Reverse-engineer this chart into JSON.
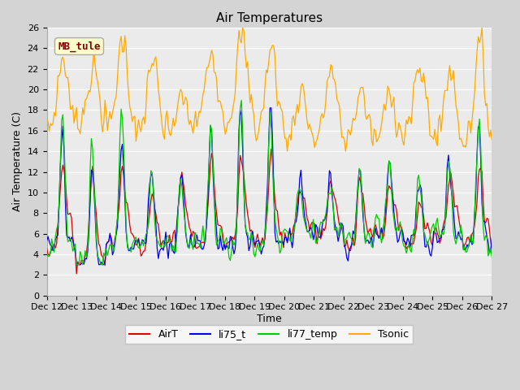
{
  "title": "Air Temperatures",
  "ylabel": "Air Temperature (C)",
  "xlabel": "Time",
  "ylim": [
    0,
    26
  ],
  "colors": {
    "AirT": "#dd0000",
    "li75_t": "#0000ee",
    "li77_temp": "#00cc00",
    "Tsonic": "#ffaa00"
  },
  "line_width": 0.9,
  "annotation_text": "MB_tule",
  "annotation_color": "#880000",
  "annotation_bg": "#ffffcc",
  "plot_bg": "#ebebeb",
  "fig_bg": "#d4d4d4",
  "x_tick_labels": [
    "Dec 12",
    "Dec 13",
    "Dec 14",
    "Dec 15",
    "Dec 16",
    "Dec 17",
    "Dec 18",
    "Dec 19",
    "Dec 20",
    "Dec 21",
    "Dec 22",
    "Dec 23",
    "Dec 24",
    "Dec 25",
    "Dec 26",
    "Dec 27"
  ],
  "legend_entries": [
    "AirT",
    "li75_t",
    "li77_temp",
    "Tsonic"
  ],
  "title_fontsize": 11,
  "axis_label_fontsize": 9,
  "tick_fontsize": 8
}
